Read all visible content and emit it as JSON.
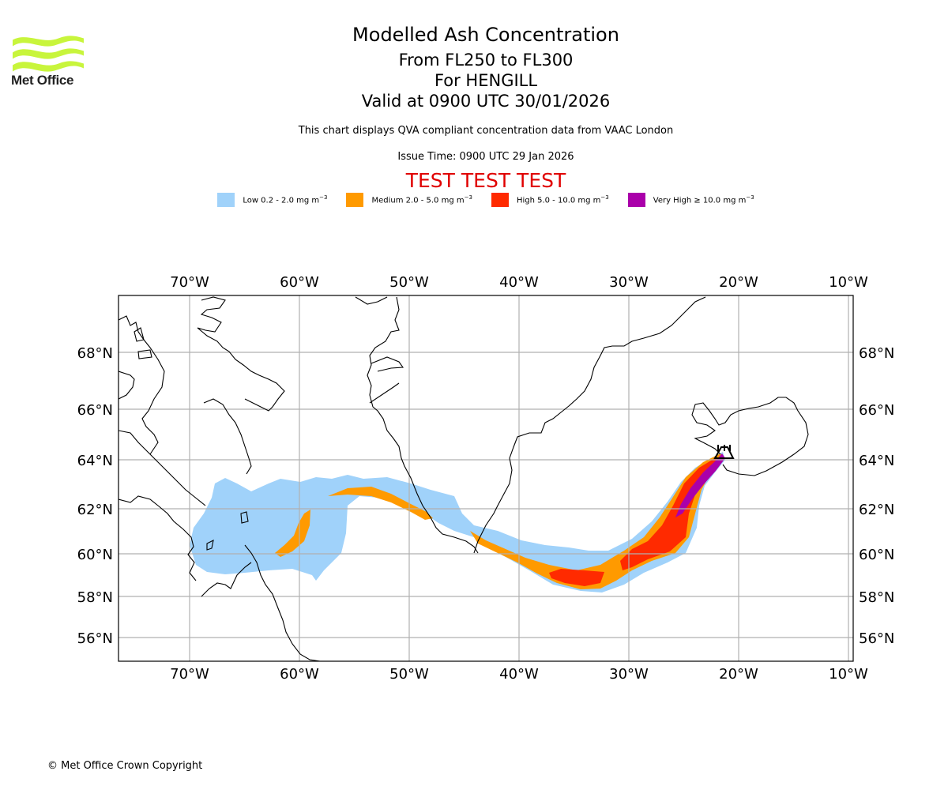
{
  "header": {
    "logo_text": "Met Office",
    "title": "Modelled Ash Concentration",
    "levels": "From FL250 to FL300",
    "volcano": "For HENGILL",
    "valid": "Valid at 0900 UTC 30/01/2026",
    "description": "This chart displays QVA compliant concentration data from VAAC London",
    "issue_time": "Issue Time: 0900 UTC 29 Jan 2026",
    "test_banner": "TEST TEST TEST"
  },
  "legend": [
    {
      "name": "Low",
      "label": "Low 0.2 - 2.0 mg m",
      "exp": "−3",
      "color": "#a0d2fa"
    },
    {
      "name": "Medium",
      "label": "Medium 2.0 - 5.0 mg m",
      "exp": "−3",
      "color": "#ff9a00"
    },
    {
      "name": "High",
      "label": "High 5.0 - 10.0 mg m",
      "exp": "−3",
      "color": "#ff2a00"
    },
    {
      "name": "Very High",
      "label": "Very High  ≥  10.0 mg m",
      "exp": "−3",
      "color": "#aa00aa"
    }
  ],
  "map": {
    "lon_ticks": [
      "70°W",
      "60°W",
      "50°W",
      "40°W",
      "30°W",
      "20°W",
      "10°W"
    ],
    "lon_values": [
      -70,
      -60,
      -50,
      -40,
      -30,
      -20,
      -10
    ],
    "lat_ticks": [
      "68°N",
      "66°N",
      "64°N",
      "62°N",
      "60°N",
      "58°N",
      "56°N"
    ],
    "lat_values": [
      68,
      66,
      64,
      62,
      60,
      58,
      56
    ],
    "volcano_marker": {
      "name": "HENGILL",
      "lon": -21.3,
      "lat": 64.1
    },
    "grid_color": "#b0b0b0"
  },
  "footer": {
    "copyright": "© Met Office Crown Copyright"
  }
}
